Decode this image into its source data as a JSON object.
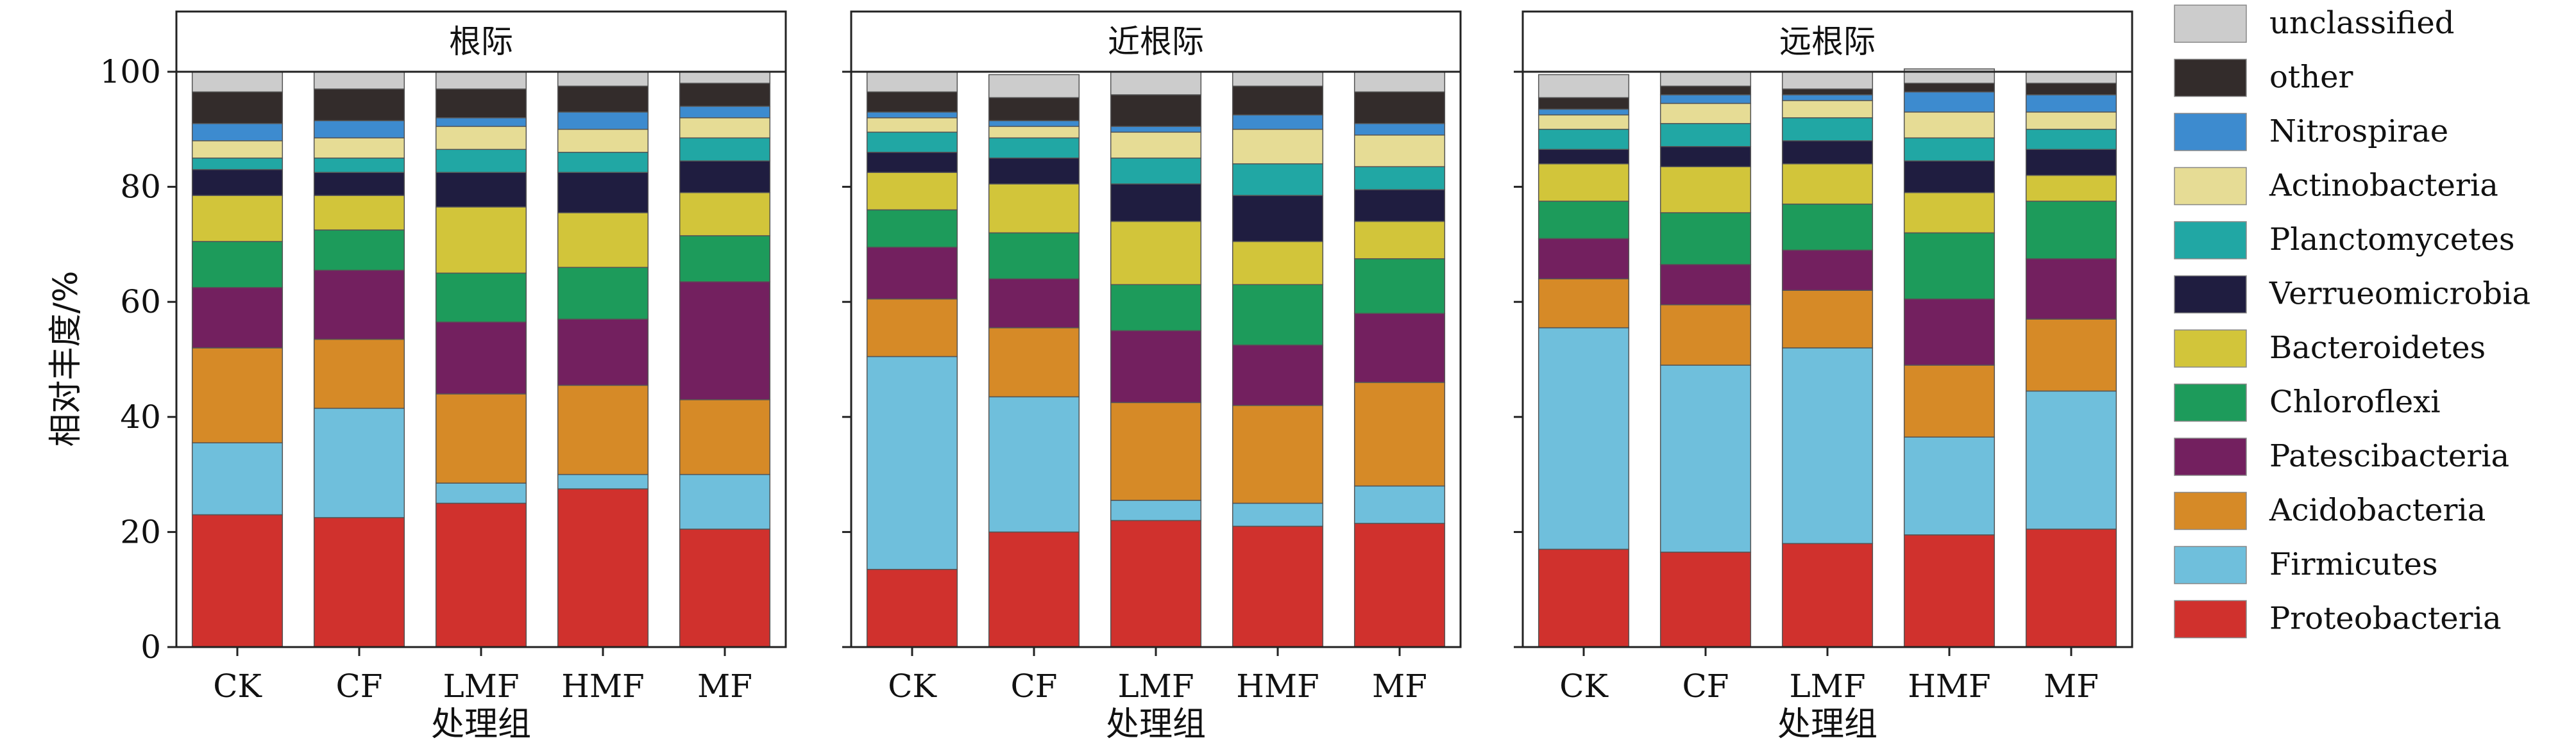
{
  "chart_data": {
    "type": "bar",
    "stacked": true,
    "ylabel": "相对丰度/%",
    "xlabel": "处理组",
    "ylim": [
      0,
      100
    ],
    "yticks": [
      0,
      20,
      40,
      60,
      80,
      100
    ],
    "categories": [
      "CK",
      "CF",
      "LMF",
      "HMF",
      "MF"
    ],
    "legend_position": "right",
    "taxa": [
      {
        "name": "Proteobacteria",
        "color": "#d0312d"
      },
      {
        "name": "Firmicutes",
        "color": "#6fbfdc"
      },
      {
        "name": "Acidobacteria",
        "color": "#d68a27"
      },
      {
        "name": "Patescibacteria",
        "color": "#73205f"
      },
      {
        "name": "Chloroflexi",
        "color": "#1d9b5b"
      },
      {
        "name": "Bacteroidetes",
        "color": "#d2c53a"
      },
      {
        "name": "Verrueomicrobia",
        "color": "#1f1d40"
      },
      {
        "name": "Planctomycetes",
        "color": "#21a7a4"
      },
      {
        "name": "Actinobacteria",
        "color": "#e6dc95"
      },
      {
        "name": "Nitrospirae",
        "color": "#3d8bcf"
      },
      {
        "name": "other",
        "color": "#332c2b"
      },
      {
        "name": "unclassified",
        "color": "#cccccc"
      }
    ],
    "panels": [
      {
        "title": "根际",
        "values": {
          "CK": [
            23.0,
            12.5,
            16.5,
            10.5,
            8.0,
            8.0,
            4.5,
            2.0,
            3.0,
            3.0,
            5.5,
            3.5
          ],
          "CF": [
            22.5,
            19.0,
            12.0,
            12.0,
            7.0,
            6.0,
            4.0,
            2.5,
            3.5,
            3.0,
            5.5,
            3.0
          ],
          "LMF": [
            25.0,
            3.5,
            15.5,
            12.5,
            8.5,
            11.5,
            6.0,
            4.0,
            4.0,
            1.5,
            5.0,
            3.0
          ],
          "HMF": [
            27.5,
            2.5,
            15.5,
            11.5,
            9.0,
            9.5,
            7.0,
            3.5,
            4.0,
            3.0,
            4.5,
            2.5
          ],
          "MF": [
            20.5,
            9.5,
            13.0,
            20.5,
            8.0,
            7.5,
            5.5,
            4.0,
            3.5,
            2.0,
            4.0,
            2.0
          ]
        }
      },
      {
        "title": "近根际",
        "values": {
          "CK": [
            13.5,
            37.0,
            10.0,
            9.0,
            6.5,
            6.5,
            3.5,
            3.5,
            2.5,
            1.0,
            3.5,
            3.5
          ],
          "CF": [
            20.0,
            23.5,
            12.0,
            8.5,
            8.0,
            8.5,
            4.5,
            3.5,
            2.0,
            1.0,
            4.0,
            4.0
          ],
          "LMF": [
            22.0,
            3.5,
            17.0,
            12.5,
            8.0,
            11.0,
            6.5,
            4.5,
            4.5,
            1.0,
            5.5,
            4.0
          ],
          "HMF": [
            21.0,
            4.0,
            17.0,
            10.5,
            10.5,
            7.5,
            8.0,
            5.5,
            6.0,
            2.5,
            5.0,
            2.5
          ],
          "MF": [
            21.5,
            6.5,
            18.0,
            12.0,
            9.5,
            6.5,
            5.5,
            4.0,
            5.5,
            2.0,
            5.5,
            3.5
          ]
        }
      },
      {
        "title": "远根际",
        "values": {
          "CK": [
            17.0,
            38.5,
            8.5,
            7.0,
            6.5,
            6.5,
            2.5,
            3.5,
            2.5,
            1.0,
            2.0,
            4.0
          ],
          "CF": [
            16.5,
            32.5,
            10.5,
            7.0,
            9.0,
            8.0,
            3.5,
            4.0,
            3.5,
            1.5,
            1.5,
            2.5
          ],
          "LMF": [
            18.0,
            34.0,
            10.0,
            7.0,
            8.0,
            7.0,
            4.0,
            4.0,
            3.0,
            1.0,
            1.0,
            3.0
          ],
          "HMF": [
            19.5,
            17.0,
            12.5,
            11.5,
            11.5,
            7.0,
            5.5,
            4.0,
            4.5,
            3.5,
            1.5,
            2.5
          ],
          "MF": [
            20.5,
            24.0,
            12.5,
            10.5,
            10.0,
            4.5,
            4.5,
            3.5,
            3.0,
            3.0,
            2.0,
            2.0
          ]
        }
      }
    ]
  }
}
